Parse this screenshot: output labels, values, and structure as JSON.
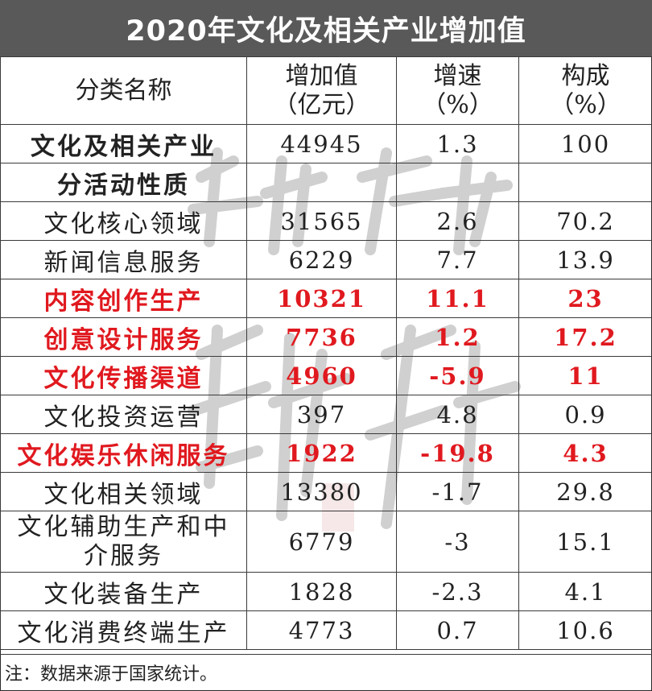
{
  "title": "2020年文化及相关产业增加值",
  "headers": {
    "name": "分类名称",
    "value_line1": "增加值",
    "value_line2": "（亿元）",
    "growth_line1": "增速",
    "growth_line2": "（%）",
    "share_line1": "构成",
    "share_line2": "（%）"
  },
  "rows": [
    {
      "name": "文化及相关产业",
      "value": "44945",
      "growth": "1.3",
      "share": "100"
    },
    {
      "name": "分活动性质",
      "value": "",
      "growth": "",
      "share": ""
    },
    {
      "name": "文化核心领域",
      "value": "31565",
      "growth": "2.6",
      "share": "70.2"
    },
    {
      "name": "新闻信息服务",
      "value": "6229",
      "growth": "7.7",
      "share": "13.9"
    },
    {
      "name": "内容创作生产",
      "value": "10321",
      "growth": "11.1",
      "share": "23"
    },
    {
      "name": "创意设计服务",
      "value": "7736",
      "growth": "1.2",
      "share": "17.2"
    },
    {
      "name": "文化传播渠道",
      "value": "4960",
      "growth": "-5.9",
      "share": "11"
    },
    {
      "name": "文化投资运营",
      "value": "397",
      "growth": "4.8",
      "share": "0.9"
    },
    {
      "name": "文化娱乐休闲服务",
      "value": "1922",
      "growth": "-19.8",
      "share": "4.3"
    },
    {
      "name": "文化相关领域",
      "value": "13380",
      "growth": "-1.7",
      "share": "29.8"
    },
    {
      "name": "文化辅助生产和中介服务",
      "value": "6779",
      "growth": "-3",
      "share": "15.1"
    },
    {
      "name": "文化装备生产",
      "value": "1828",
      "growth": "-2.3",
      "share": "4.1"
    },
    {
      "name": "文化消费终端生产",
      "value": "4773",
      "growth": "0.7",
      "share": "10.6"
    }
  ],
  "note": "注：数据来源于国家统计。",
  "colors": {
    "highlight": "#e0191f",
    "title_bg": "#595959"
  }
}
